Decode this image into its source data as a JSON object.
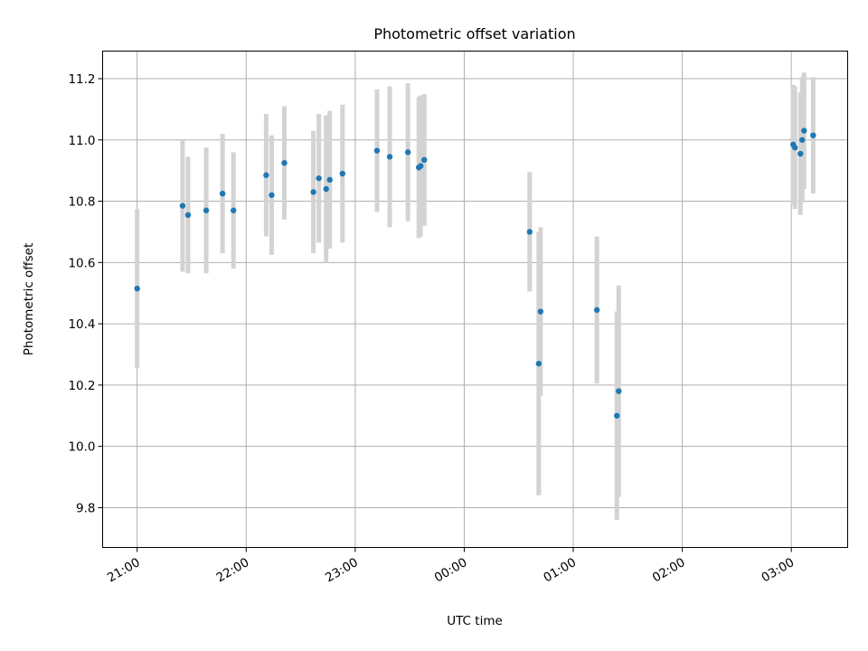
{
  "chart_data": {
    "type": "scatter",
    "title": "Photometric offset variation",
    "xlabel": "UTC time",
    "ylabel": "Photometric offset",
    "xlim": [
      "20:41",
      "03:31"
    ],
    "ylim": [
      9.67,
      11.29
    ],
    "x_tick_labels": [
      "21:00",
      "22:00",
      "23:00",
      "00:00",
      "01:00",
      "02:00",
      "03:00"
    ],
    "x_ticks": [
      "21:00",
      "22:00",
      "23:00",
      "00:00",
      "01:00",
      "02:00",
      "03:00"
    ],
    "y_ticks": [
      9.8,
      10.0,
      10.2,
      10.4,
      10.6,
      10.8,
      11.0,
      11.2
    ],
    "y_tick_labels": [
      "9.8",
      "10.0",
      "10.2",
      "10.4",
      "10.6",
      "10.8",
      "11.0",
      "11.2"
    ],
    "grid": true,
    "marker_color": "#1f77b4",
    "errorbar_color": "#d3d3d3",
    "points": [
      {
        "x": "21:00",
        "y": 10.515,
        "err": 0.26
      },
      {
        "x": "21:25",
        "y": 10.785,
        "err": 0.215
      },
      {
        "x": "21:28",
        "y": 10.755,
        "err": 0.19
      },
      {
        "x": "21:38",
        "y": 10.77,
        "err": 0.205
      },
      {
        "x": "21:47",
        "y": 10.825,
        "err": 0.195
      },
      {
        "x": "21:53",
        "y": 10.77,
        "err": 0.19
      },
      {
        "x": "22:11",
        "y": 10.885,
        "err": 0.2
      },
      {
        "x": "22:14",
        "y": 10.82,
        "err": 0.195
      },
      {
        "x": "22:21",
        "y": 10.925,
        "err": 0.185
      },
      {
        "x": "22:37",
        "y": 10.83,
        "err": 0.2
      },
      {
        "x": "22:40",
        "y": 10.875,
        "err": 0.21
      },
      {
        "x": "22:44",
        "y": 10.84,
        "err": 0.24
      },
      {
        "x": "22:46",
        "y": 10.87,
        "err": 0.225
      },
      {
        "x": "22:53",
        "y": 10.89,
        "err": 0.225
      },
      {
        "x": "23:12",
        "y": 10.965,
        "err": 0.2
      },
      {
        "x": "23:19",
        "y": 10.945,
        "err": 0.23
      },
      {
        "x": "23:29",
        "y": 10.96,
        "err": 0.225
      },
      {
        "x": "23:35",
        "y": 10.91,
        "err": 0.23
      },
      {
        "x": "23:36",
        "y": 10.915,
        "err": 0.23
      },
      {
        "x": "23:38",
        "y": 10.935,
        "err": 0.215
      },
      {
        "x": "00:36",
        "y": 10.7,
        "err": 0.195
      },
      {
        "x": "00:41",
        "y": 10.27,
        "err": 0.43
      },
      {
        "x": "00:42",
        "y": 10.44,
        "err": 0.275
      },
      {
        "x": "01:13",
        "y": 10.445,
        "err": 0.24
      },
      {
        "x": "01:24",
        "y": 10.1,
        "err": 0.34
      },
      {
        "x": "01:25",
        "y": 10.18,
        "err": 0.345
      },
      {
        "x": "03:01",
        "y": 10.985,
        "err": 0.195
      },
      {
        "x": "03:02",
        "y": 10.975,
        "err": 0.2
      },
      {
        "x": "03:05",
        "y": 10.955,
        "err": 0.2
      },
      {
        "x": "03:06",
        "y": 11.0,
        "err": 0.205
      },
      {
        "x": "03:07",
        "y": 11.03,
        "err": 0.19
      },
      {
        "x": "03:12",
        "y": 11.015,
        "err": 0.19
      }
    ]
  }
}
